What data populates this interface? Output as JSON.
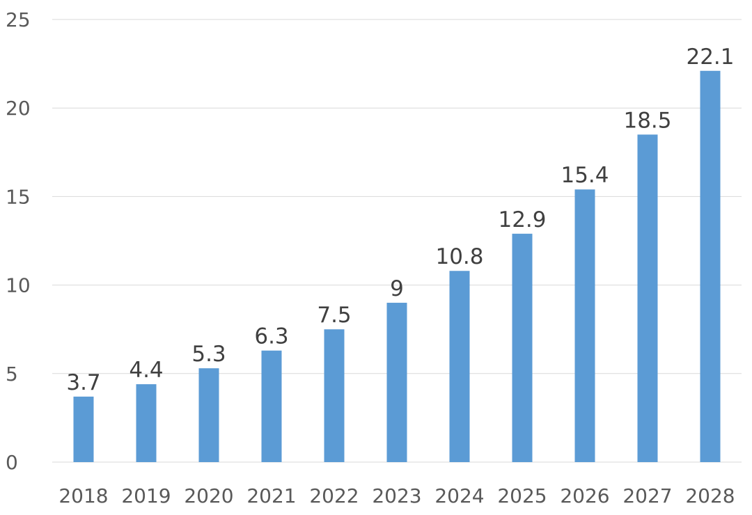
{
  "chart_data": {
    "type": "bar",
    "categories": [
      "2018",
      "2019",
      "2020",
      "2021",
      "2022",
      "2023",
      "2024",
      "2025",
      "2026",
      "2027",
      "2028"
    ],
    "values": [
      3.7,
      4.4,
      5.3,
      6.3,
      7.5,
      9,
      10.8,
      12.9,
      15.4,
      18.5,
      22.1
    ],
    "data_labels": [
      "3.7",
      "4.4",
      "5.3",
      "6.3",
      "7.5",
      "9",
      "10.8",
      "12.9",
      "15.4",
      "18.5",
      "22.1"
    ],
    "y_ticks": [
      0,
      5,
      10,
      15,
      20,
      25
    ],
    "ylim": [
      0,
      25
    ],
    "grid": true,
    "legend": "none",
    "bar_color": "#5b9bd5",
    "grid_color": "#d9d9d9",
    "label_color": "#404040"
  }
}
